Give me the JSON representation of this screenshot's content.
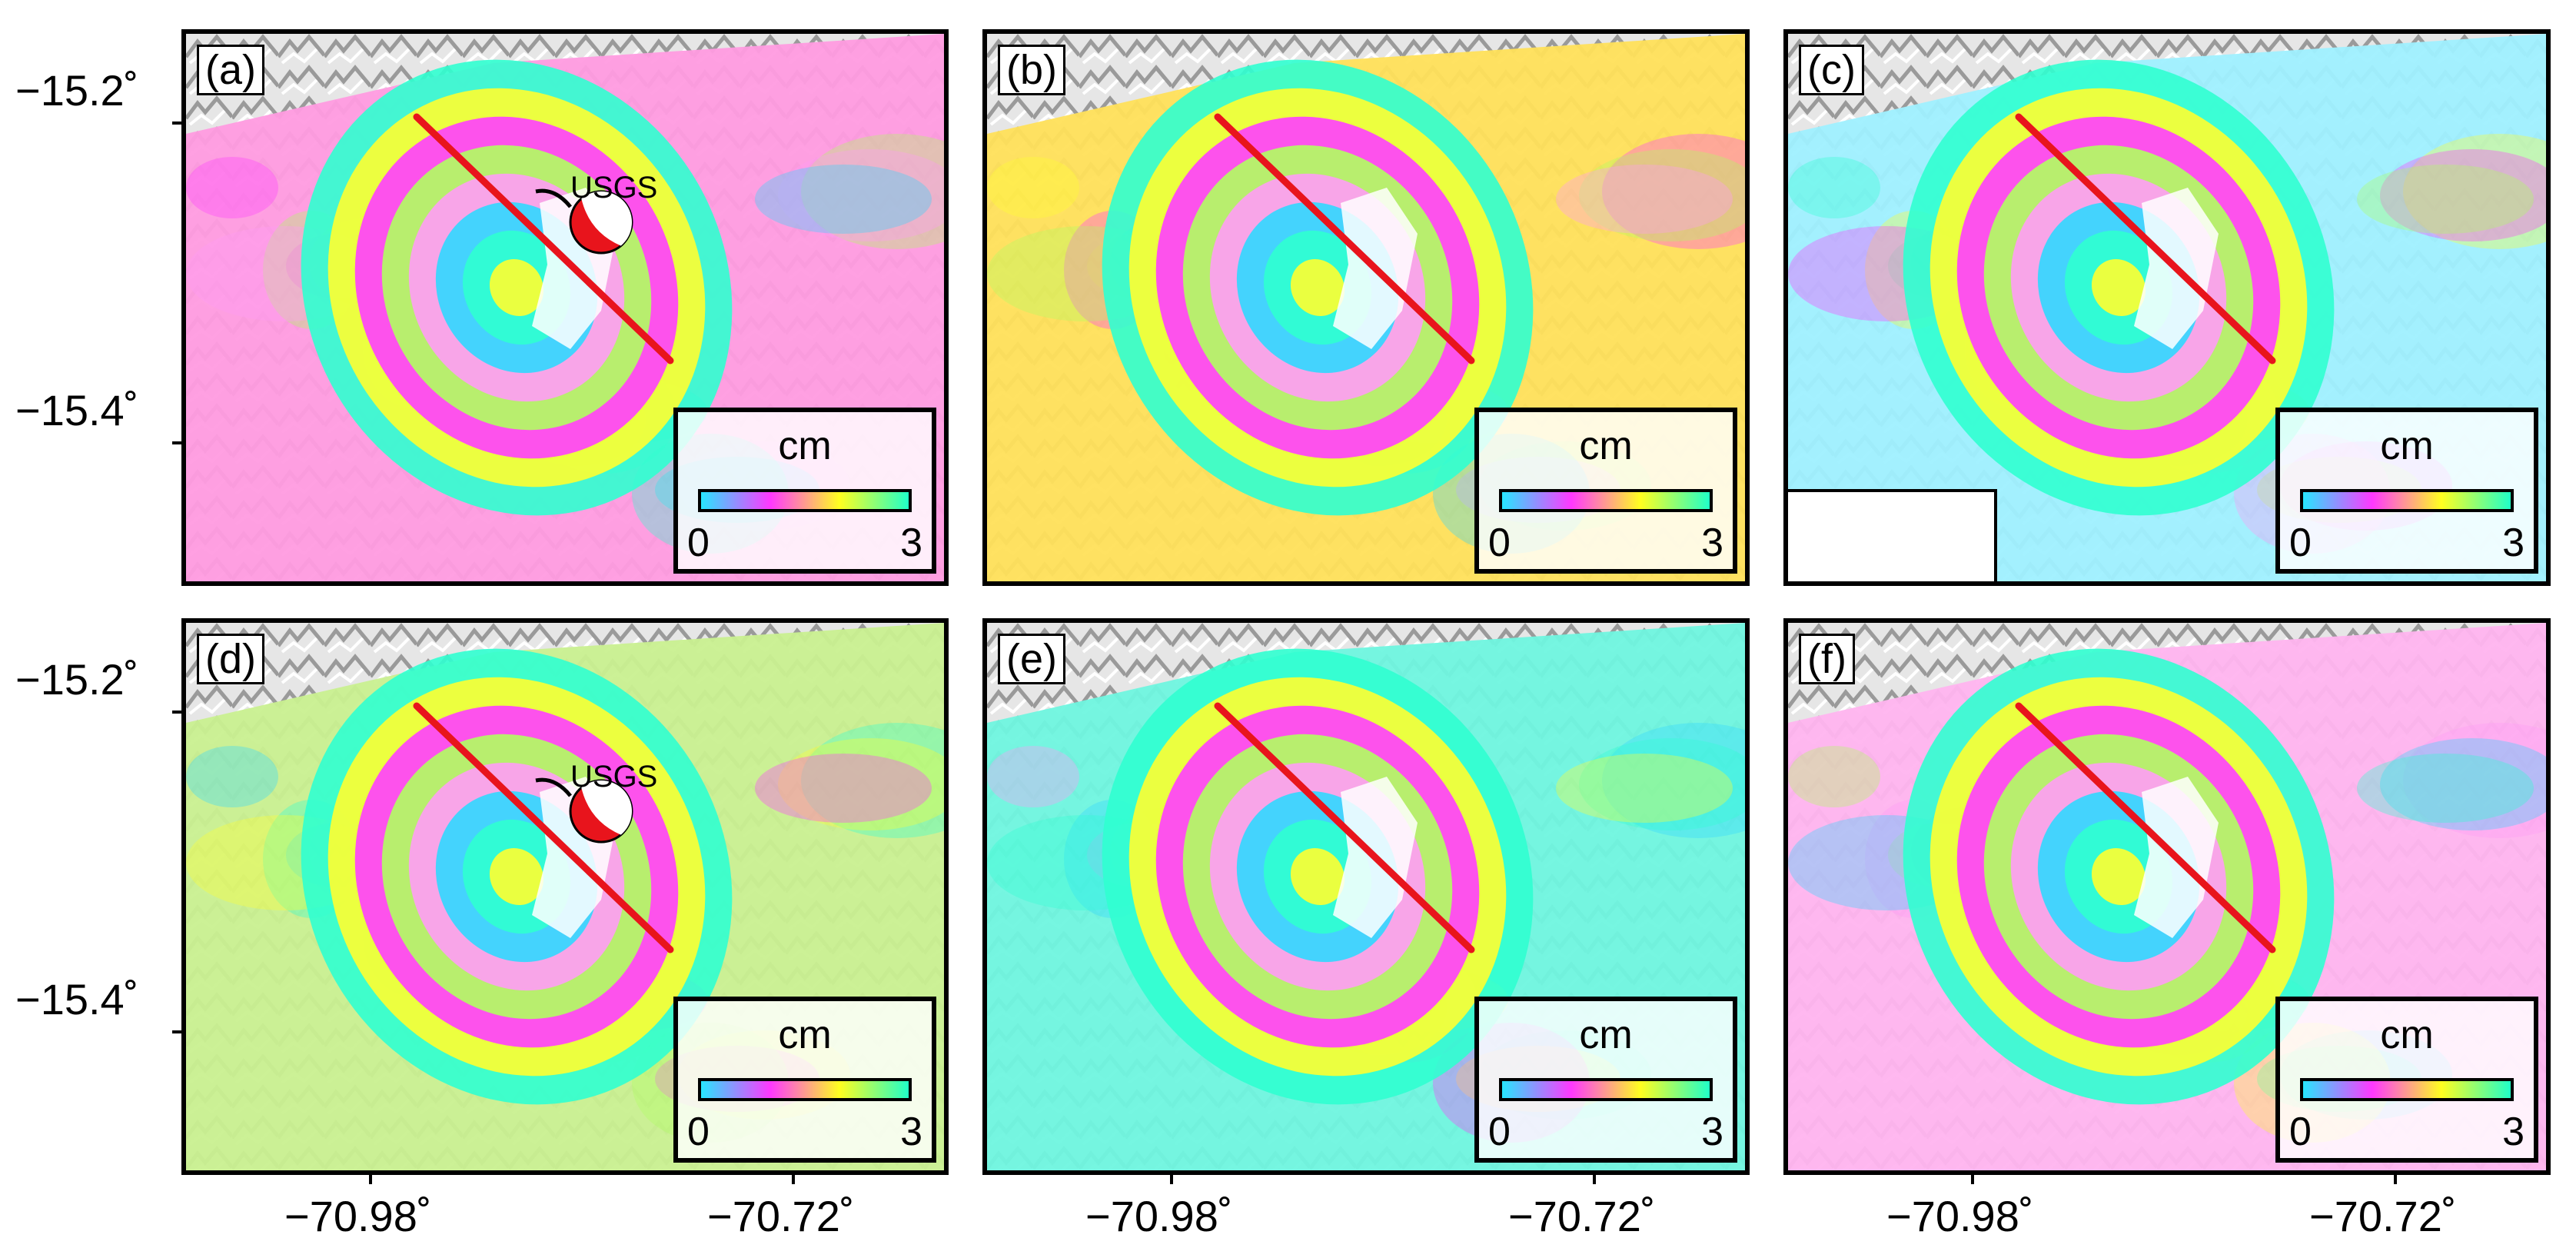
{
  "colors": {
    "fault_trace": "#e8141c",
    "frame": "#000000",
    "beachball_red": "#e8141c",
    "legend_gradient": [
      "#27e6ff",
      "#ff38ff",
      "#ffff20",
      "#20ffc8"
    ]
  },
  "axes": {
    "y_ticks": [
      "−15.2˚",
      "−15.4˚"
    ],
    "x_ticks": [
      "−70.98˚",
      "−70.72˚"
    ]
  },
  "legend": {
    "unit": "cm",
    "min": "0",
    "max": "3"
  },
  "panels": [
    {
      "id": "a",
      "label": "(a)",
      "has_beachball": true,
      "beachball_label": "USGS",
      "background_color": "#ff9be0",
      "has_mask": false
    },
    {
      "id": "b",
      "label": "(b)",
      "has_beachball": false,
      "beachball_label": "",
      "background_color": "#ffe05a",
      "has_mask": false
    },
    {
      "id": "c",
      "label": "(c)",
      "has_beachball": false,
      "beachball_label": "",
      "background_color": "#9ff0ff",
      "has_mask": true
    },
    {
      "id": "d",
      "label": "(d)",
      "has_beachball": true,
      "beachball_label": "USGS",
      "background_color": "#c9f090",
      "has_mask": false
    },
    {
      "id": "e",
      "label": "(e)",
      "has_beachball": false,
      "beachball_label": "",
      "background_color": "#6ff5df",
      "has_mask": false
    },
    {
      "id": "f",
      "label": "(f)",
      "has_beachball": false,
      "beachball_label": "",
      "background_color": "#ffb4ef",
      "has_mask": false
    }
  ]
}
